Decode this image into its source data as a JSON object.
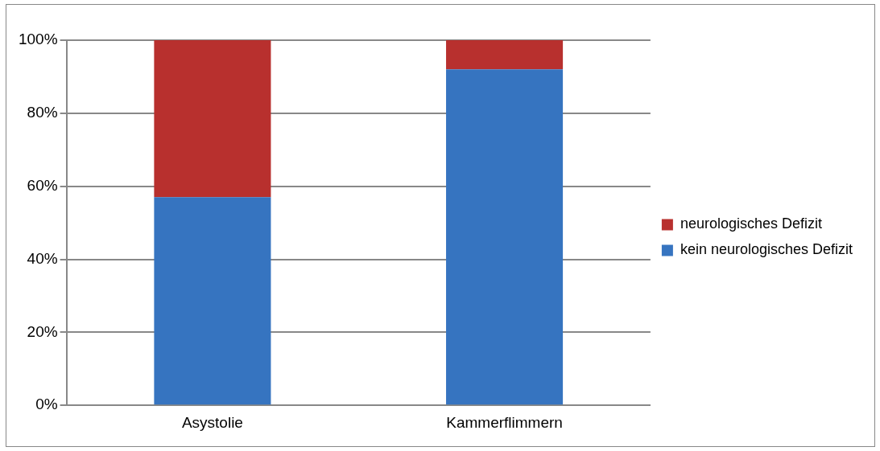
{
  "chart_data": {
    "type": "bar",
    "stacked": true,
    "categories": [
      "Asystolie",
      "Kammerflimmern"
    ],
    "series": [
      {
        "name": "kein neurologisches Defizit",
        "color": "#3674c0",
        "values": [
          57,
          92
        ]
      },
      {
        "name": "neurologisches Defizit",
        "color": "#b8302e",
        "values": [
          43,
          8
        ]
      }
    ],
    "ylim": [
      0,
      100
    ],
    "yticks": [
      {
        "value": 0,
        "label": "0%"
      },
      {
        "value": 20,
        "label": "20%"
      },
      {
        "value": 40,
        "label": "40%"
      },
      {
        "value": 60,
        "label": "60%"
      },
      {
        "value": 80,
        "label": "80%"
      },
      {
        "value": 100,
        "label": "100%"
      }
    ],
    "grid": "y",
    "legend": "right"
  }
}
